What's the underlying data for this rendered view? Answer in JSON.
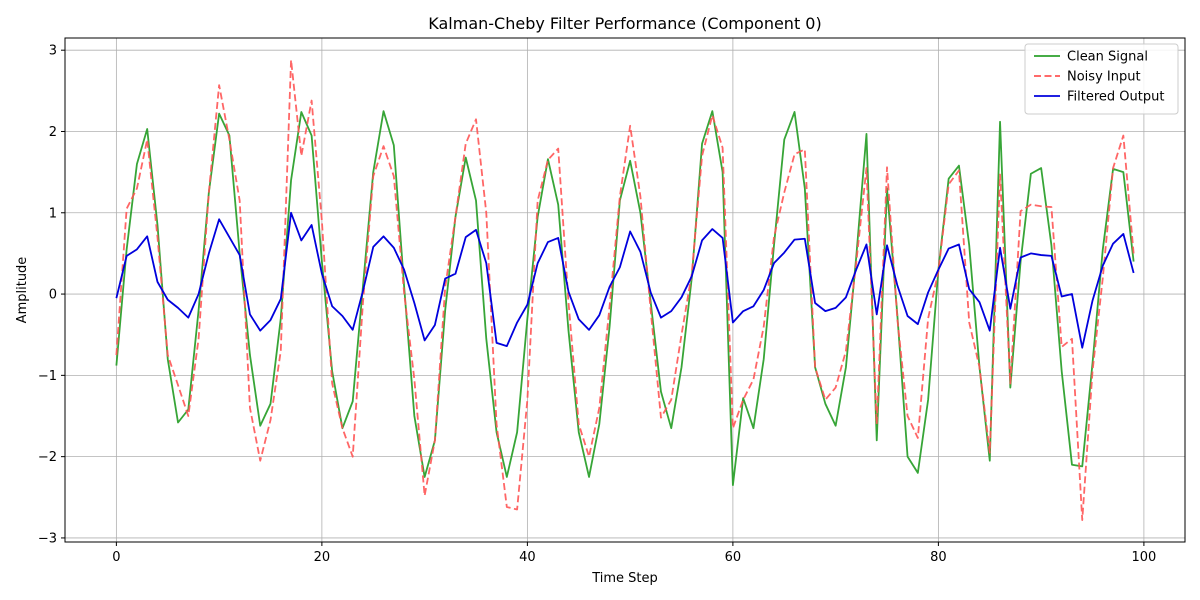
{
  "chart_data": {
    "type": "line",
    "title": "Kalman-Cheby Filter Performance (Component 0)",
    "xlabel": "Time Step",
    "ylabel": "Amplitude",
    "xlim": [
      -5,
      104
    ],
    "ylim": [
      -3.05,
      3.15
    ],
    "xticks": [
      0,
      20,
      40,
      60,
      80,
      100
    ],
    "yticks": [
      -3,
      -2,
      -1,
      0,
      1,
      2,
      3
    ],
    "grid": true,
    "legend_position": "top-right",
    "x": [
      0,
      1,
      2,
      3,
      4,
      5,
      6,
      7,
      8,
      9,
      10,
      11,
      12,
      13,
      14,
      15,
      16,
      17,
      18,
      19,
      20,
      21,
      22,
      23,
      24,
      25,
      26,
      27,
      28,
      29,
      30,
      31,
      32,
      33,
      34,
      35,
      36,
      37,
      38,
      39,
      40,
      41,
      42,
      43,
      44,
      45,
      46,
      47,
      48,
      49,
      50,
      51,
      52,
      53,
      54,
      55,
      56,
      57,
      58,
      59,
      60,
      61,
      62,
      63,
      64,
      65,
      66,
      67,
      68,
      69,
      70,
      71,
      72,
      73,
      74,
      75,
      76,
      77,
      78,
      79,
      80,
      81,
      82,
      83,
      84,
      85,
      86,
      87,
      88,
      89,
      90,
      91,
      92,
      93,
      94,
      95,
      96,
      97,
      98,
      99
    ],
    "series": [
      {
        "name": "Clean Signal",
        "color": "#2ca02c",
        "style": "solid",
        "values": [
          -0.88,
          0.55,
          1.6,
          2.03,
          0.85,
          -0.8,
          -1.58,
          -1.42,
          -0.2,
          1.25,
          2.22,
          1.95,
          0.5,
          -0.75,
          -1.62,
          -1.35,
          -0.3,
          1.4,
          2.24,
          1.95,
          0.4,
          -0.95,
          -1.65,
          -1.32,
          0.1,
          1.5,
          2.25,
          1.83,
          0.1,
          -1.5,
          -2.25,
          -1.8,
          -0.2,
          0.95,
          1.68,
          1.15,
          -0.55,
          -1.7,
          -2.25,
          -1.7,
          -0.3,
          0.95,
          1.66,
          1.1,
          -0.45,
          -1.7,
          -2.25,
          -1.6,
          -0.4,
          1.15,
          1.64,
          1.0,
          -0.1,
          -1.2,
          -1.65,
          -0.9,
          0.2,
          1.85,
          2.25,
          1.5,
          -2.35,
          -1.28,
          -1.65,
          -0.8,
          0.6,
          1.9,
          2.24,
          1.3,
          -0.9,
          -1.35,
          -1.62,
          -0.9,
          0.45,
          1.97,
          -1.8,
          1.3,
          -0.25,
          -2.0,
          -2.2,
          -1.3,
          0.3,
          1.42,
          1.58,
          0.6,
          -0.9,
          -2.05,
          2.12,
          -1.15,
          0.4,
          1.48,
          1.55,
          0.6,
          -0.95,
          -2.1,
          -2.12,
          -0.85,
          0.55,
          1.54,
          1.5,
          0.4
        ]
      },
      {
        "name": "Noisy Input",
        "color": "#ff5555",
        "style": "dashed",
        "values": [
          -0.75,
          1.05,
          1.3,
          1.9,
          0.7,
          -0.75,
          -1.12,
          -1.5,
          -0.55,
          1.25,
          2.57,
          1.9,
          1.15,
          -1.4,
          -2.05,
          -1.55,
          -0.7,
          2.88,
          1.7,
          2.38,
          0.9,
          -1.1,
          -1.65,
          -2.0,
          -0.1,
          1.45,
          1.82,
          1.45,
          0.02,
          -1.05,
          -2.48,
          -1.8,
          0.08,
          0.95,
          1.85,
          2.15,
          1.0,
          -1.6,
          -2.62,
          -2.65,
          -1.3,
          1.15,
          1.65,
          1.79,
          -0.1,
          -1.6,
          -2.0,
          -1.4,
          -0.15,
          1.2,
          2.07,
          1.2,
          -0.2,
          -1.52,
          -1.3,
          -0.5,
          0.25,
          1.7,
          2.2,
          1.8,
          -1.65,
          -1.3,
          -1.05,
          -0.4,
          0.7,
          1.25,
          1.72,
          1.78,
          -0.9,
          -1.3,
          -1.15,
          -0.7,
          0.38,
          1.55,
          -1.6,
          1.56,
          -0.3,
          -1.5,
          -1.77,
          -0.3,
          0.28,
          1.35,
          1.52,
          -0.35,
          -0.9,
          -1.95,
          1.47,
          -1.1,
          1.02,
          1.1,
          1.08,
          1.07,
          -0.65,
          -0.55,
          -2.78,
          -0.95,
          0.2,
          1.55,
          1.95,
          0.5
        ]
      },
      {
        "name": "Filtered Output",
        "color": "#0000dd",
        "style": "solid",
        "values": [
          -0.05,
          0.47,
          0.55,
          0.71,
          0.15,
          -0.07,
          -0.17,
          -0.29,
          0.0,
          0.5,
          0.92,
          0.7,
          0.48,
          -0.25,
          -0.45,
          -0.32,
          -0.06,
          1.0,
          0.66,
          0.85,
          0.25,
          -0.15,
          -0.27,
          -0.44,
          0.04,
          0.58,
          0.71,
          0.57,
          0.3,
          -0.11,
          -0.57,
          -0.38,
          0.19,
          0.25,
          0.7,
          0.79,
          0.38,
          -0.6,
          -0.64,
          -0.35,
          -0.13,
          0.38,
          0.64,
          0.69,
          0.03,
          -0.31,
          -0.44,
          -0.26,
          0.09,
          0.33,
          0.77,
          0.52,
          0.02,
          -0.29,
          -0.21,
          -0.04,
          0.22,
          0.66,
          0.8,
          0.69,
          -0.35,
          -0.21,
          -0.15,
          0.05,
          0.38,
          0.51,
          0.67,
          0.68,
          -0.11,
          -0.21,
          -0.17,
          -0.04,
          0.3,
          0.61,
          -0.25,
          0.6,
          0.11,
          -0.27,
          -0.37,
          0.02,
          0.3,
          0.56,
          0.61,
          0.06,
          -0.1,
          -0.45,
          0.57,
          -0.18,
          0.45,
          0.5,
          0.48,
          0.47,
          -0.03,
          0.0,
          -0.66,
          -0.08,
          0.35,
          0.62,
          0.74,
          0.26
        ]
      }
    ]
  }
}
